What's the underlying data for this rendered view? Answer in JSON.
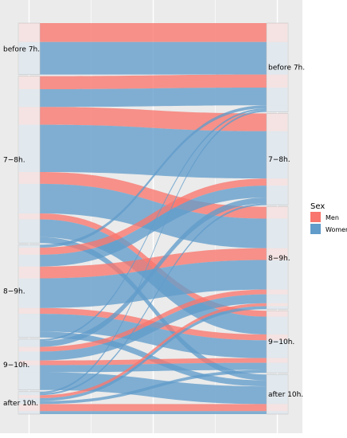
{
  "chart_data": {
    "type": "alluvial",
    "title": "",
    "xlabel": "",
    "ylabel": "",
    "grid": true,
    "legend_position": "right",
    "legend": {
      "title": "Sex",
      "entries": [
        {
          "name": "Men",
          "color": "#F8766D"
        },
        {
          "name": "Women",
          "color": "#619CCA"
        }
      ]
    },
    "axes": [
      {
        "name": "left",
        "categories": [
          "before 7h.",
          "7−8h.",
          "8−9h.",
          "9−10h.",
          "after 10h."
        ]
      },
      {
        "name": "right",
        "categories": [
          "before 7h.",
          "7−8h.",
          "8−9h.",
          "9−10h.",
          "after 10h."
        ]
      }
    ],
    "flows": [
      {
        "from": "before 7h.",
        "to": "before 7h.",
        "sex": "Men",
        "value": 3.2
      },
      {
        "from": "before 7h.",
        "to": "before 7h.",
        "sex": "Women",
        "value": 5.5
      },
      {
        "from": "7−8h.",
        "to": "before 7h.",
        "sex": "Men",
        "value": 2.2
      },
      {
        "from": "7−8h.",
        "to": "7−8h.",
        "sex": "Men",
        "value": 3.0
      },
      {
        "from": "7−8h.",
        "to": "8−9h.",
        "sex": "Men",
        "value": 2.0
      },
      {
        "from": "7−8h.",
        "to": "9−10h.",
        "sex": "Men",
        "value": 1.0
      },
      {
        "from": "7−8h.",
        "to": "before 7h.",
        "sex": "Women",
        "value": 3.0
      },
      {
        "from": "7−8h.",
        "to": "7−8h.",
        "sex": "Women",
        "value": 8.0
      },
      {
        "from": "7−8h.",
        "to": "8−9h.",
        "sex": "Women",
        "value": 5.0
      },
      {
        "from": "7−8h.",
        "to": "9−10h.",
        "sex": "Women",
        "value": 3.0
      },
      {
        "from": "7−8h.",
        "to": "after 10h.",
        "sex": "Women",
        "value": 1.0
      },
      {
        "from": "8−9h.",
        "to": "7−8h.",
        "sex": "Men",
        "value": 1.2
      },
      {
        "from": "8−9h.",
        "to": "8−9h.",
        "sex": "Men",
        "value": 2.0
      },
      {
        "from": "8−9h.",
        "to": "9−10h.",
        "sex": "Men",
        "value": 1.0
      },
      {
        "from": "8−9h.",
        "to": "before 7h.",
        "sex": "Women",
        "value": 0.5
      },
      {
        "from": "8−9h.",
        "to": "7−8h.",
        "sex": "Women",
        "value": 2.0
      },
      {
        "from": "8−9h.",
        "to": "8−9h.",
        "sex": "Women",
        "value": 5.0
      },
      {
        "from": "8−9h.",
        "to": "9−10h.",
        "sex": "Women",
        "value": 3.0
      },
      {
        "from": "8−9h.",
        "to": "after 10h.",
        "sex": "Women",
        "value": 1.0
      },
      {
        "from": "9−10h.",
        "to": "8−9h.",
        "sex": "Men",
        "value": 0.8
      },
      {
        "from": "9−10h.",
        "to": "9−10h.",
        "sex": "Men",
        "value": 0.8
      },
      {
        "from": "9−10h.",
        "to": "before 7h.",
        "sex": "Women",
        "value": 0.3
      },
      {
        "from": "9−10h.",
        "to": "7−8h.",
        "sex": "Women",
        "value": 1.0
      },
      {
        "from": "9−10h.",
        "to": "8−9h.",
        "sex": "Women",
        "value": 1.5
      },
      {
        "from": "9−10h.",
        "to": "9−10h.",
        "sex": "Women",
        "value": 1.2
      },
      {
        "from": "9−10h.",
        "to": "after 10h.",
        "sex": "Women",
        "value": 3.0
      },
      {
        "from": "after 10h.",
        "to": "8−9h.",
        "sex": "Men",
        "value": 0.5
      },
      {
        "from": "after 10h.",
        "to": "after 10h.",
        "sex": "Men",
        "value": 1.2
      },
      {
        "from": "after 10h.",
        "to": "before 7h.",
        "sex": "Women",
        "value": 0.3
      },
      {
        "from": "after 10h.",
        "to": "7−8h.",
        "sex": "Women",
        "value": 0.3
      },
      {
        "from": "after 10h.",
        "to": "8−9h.",
        "sex": "Women",
        "value": 0.5
      },
      {
        "from": "after 10h.",
        "to": "9−10h.",
        "sex": "Women",
        "value": 0.5
      },
      {
        "from": "after 10h.",
        "to": "after 10h.",
        "sex": "Women",
        "value": 0.5
      }
    ]
  }
}
